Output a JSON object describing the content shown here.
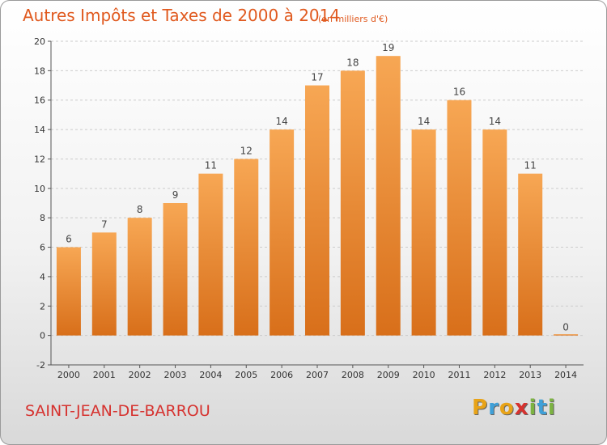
{
  "title": "Autres Impôts et Taxes de 2000 à 2014",
  "unit": "(en milliers d'€)",
  "commune": "SAINT-JEAN-DE-BARROU",
  "brand": {
    "letters": [
      "P",
      "r",
      "o",
      "x",
      "i",
      "t",
      "i"
    ],
    "colors": [
      "#e8a317",
      "#3fa0d8",
      "#e8a317",
      "#d6322f",
      "#7cb342",
      "#3fa0d8",
      "#7cb342"
    ]
  },
  "colors": {
    "bar_top": "#f7a754",
    "bar_bottom": "#d86f1a",
    "grid": "#cccccc"
  },
  "chart_data": {
    "type": "bar",
    "title": "Autres Impôts et Taxes de 2000 à 2014",
    "categories": [
      "2000",
      "2001",
      "2002",
      "2003",
      "2004",
      "2005",
      "2006",
      "2007",
      "2008",
      "2009",
      "2010",
      "2011",
      "2012",
      "2013",
      "2014"
    ],
    "values": [
      6,
      7,
      8,
      9,
      11,
      12,
      14,
      17,
      18,
      19,
      14,
      16,
      14,
      11,
      0
    ],
    "ylim": [
      -2,
      20
    ],
    "yticks": [
      -2,
      0,
      2,
      4,
      6,
      8,
      10,
      12,
      14,
      16,
      18,
      20
    ],
    "grid": true
  }
}
